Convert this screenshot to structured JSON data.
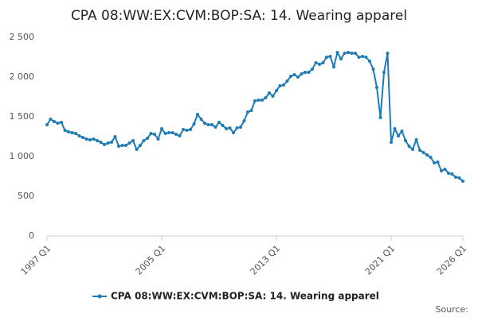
{
  "chart_data": {
    "type": "line",
    "title": "CPA 08:WW:EX:CVM:BOP:SA: 14. Wearing apparel",
    "source": "Source:",
    "categories": [
      "1997 Q1",
      null,
      null,
      null,
      null,
      null,
      null,
      null,
      null,
      null,
      null,
      null,
      null,
      null,
      null,
      null,
      null,
      null,
      null,
      null,
      null,
      null,
      null,
      null,
      null,
      null,
      null,
      null,
      null,
      null,
      null,
      null,
      "2005 Q1",
      null,
      null,
      null,
      null,
      null,
      null,
      null,
      null,
      null,
      null,
      null,
      null,
      null,
      null,
      null,
      null,
      null,
      null,
      null,
      null,
      null,
      null,
      null,
      null,
      null,
      null,
      null,
      null,
      null,
      null,
      null,
      "2013 Q1",
      null,
      null,
      null,
      null,
      null,
      null,
      null,
      null,
      null,
      null,
      null,
      null,
      null,
      null,
      null,
      null,
      null,
      null,
      null,
      null,
      null,
      null,
      null,
      null,
      null,
      null,
      null,
      null,
      null,
      null,
      null,
      "2021 Q1",
      null,
      null,
      null,
      null,
      null,
      null,
      null,
      null,
      null,
      null,
      null,
      null,
      null,
      null,
      null,
      null,
      null,
      null,
      null,
      "2026 Q1"
    ],
    "series": [
      {
        "name": "CPA 08:WW:EX:CVM:BOP:SA: 14. Wearing apparel",
        "color": "#1f7bb6",
        "values": [
          1400,
          1470,
          1440,
          1420,
          1430,
          1330,
          1310,
          1300,
          1290,
          1260,
          1240,
          1220,
          1210,
          1220,
          1200,
          1180,
          1150,
          1170,
          1180,
          1250,
          1130,
          1140,
          1140,
          1170,
          1200,
          1090,
          1140,
          1200,
          1230,
          1290,
          1280,
          1220,
          1350,
          1290,
          1300,
          1300,
          1280,
          1260,
          1340,
          1330,
          1340,
          1410,
          1530,
          1470,
          1420,
          1400,
          1400,
          1370,
          1430,
          1390,
          1350,
          1360,
          1300,
          1360,
          1370,
          1450,
          1560,
          1580,
          1700,
          1710,
          1710,
          1740,
          1800,
          1760,
          1830,
          1890,
          1900,
          1950,
          2010,
          2030,
          2000,
          2040,
          2060,
          2060,
          2100,
          2180,
          2160,
          2180,
          2250,
          2260,
          2130,
          2310,
          2230,
          2300,
          2310,
          2300,
          2300,
          2250,
          2260,
          2250,
          2200,
          2100,
          1870,
          1490,
          2060,
          2300,
          1180,
          1350,
          1260,
          1320,
          1200,
          1130,
          1090,
          1210,
          1080,
          1050,
          1020,
          990,
          920,
          930,
          820,
          840,
          790,
          780,
          740,
          730,
          690
        ]
      }
    ],
    "ylim": [
      0,
      2500
    ],
    "yticks": [
      0,
      500,
      {
        "value": 1000,
        "label": "1 000"
      },
      {
        "value": 1500,
        "label": "1 500"
      },
      {
        "value": 2000,
        "label": "2 000"
      },
      {
        "value": 2500,
        "label": "2 500"
      }
    ],
    "grid": false
  }
}
